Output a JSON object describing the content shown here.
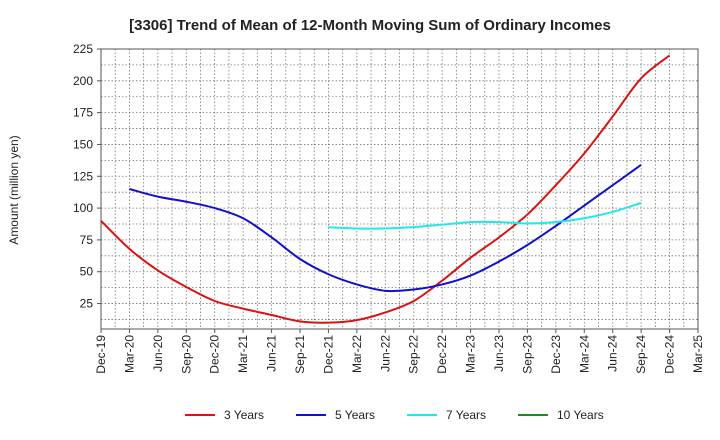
{
  "chart_data": {
    "type": "line",
    "title": "[3306]  Trend of Mean of 12-Month Moving Sum of Ordinary Incomes",
    "xlabel": "",
    "ylabel": "Amount (million yen)",
    "ylim": [
      5,
      225
    ],
    "yticks": [
      25,
      50,
      75,
      100,
      125,
      150,
      175,
      200,
      225
    ],
    "categories": [
      "Dec-19",
      "Mar-20",
      "Jun-20",
      "Sep-20",
      "Dec-20",
      "Mar-21",
      "Jun-21",
      "Sep-21",
      "Dec-21",
      "Mar-22",
      "Jun-22",
      "Sep-22",
      "Dec-22",
      "Mar-23",
      "Jun-23",
      "Sep-23",
      "Dec-23",
      "Mar-24",
      "Jun-24",
      "Sep-24",
      "Dec-24",
      "Mar-25"
    ],
    "grid": true,
    "legend_position": "bottom",
    "series": [
      {
        "name": "3 Years",
        "color": "#dd1111",
        "values": [
          90,
          68,
          51,
          38,
          27,
          21,
          16,
          11,
          10,
          12,
          18,
          27,
          43,
          61,
          77,
          95,
          118,
          143,
          172,
          202,
          220,
          null
        ]
      },
      {
        "name": "5 Years",
        "color": "#1111cc",
        "values": [
          null,
          115,
          109,
          105,
          100,
          92,
          77,
          60,
          48,
          40,
          35,
          36,
          40,
          47,
          58,
          71,
          86,
          102,
          118,
          134,
          null,
          null
        ]
      },
      {
        "name": "7 Years",
        "color": "#22e8ee",
        "values": [
          null,
          null,
          null,
          null,
          null,
          null,
          null,
          null,
          85,
          84,
          84,
          85,
          87,
          89,
          89,
          88,
          89,
          92,
          97,
          104,
          null,
          null
        ]
      },
      {
        "name": "10 Years",
        "color": "#228822",
        "values": [
          null,
          null,
          null,
          null,
          null,
          null,
          null,
          null,
          null,
          null,
          null,
          null,
          null,
          null,
          null,
          null,
          null,
          null,
          null,
          null,
          null,
          null
        ]
      }
    ]
  }
}
